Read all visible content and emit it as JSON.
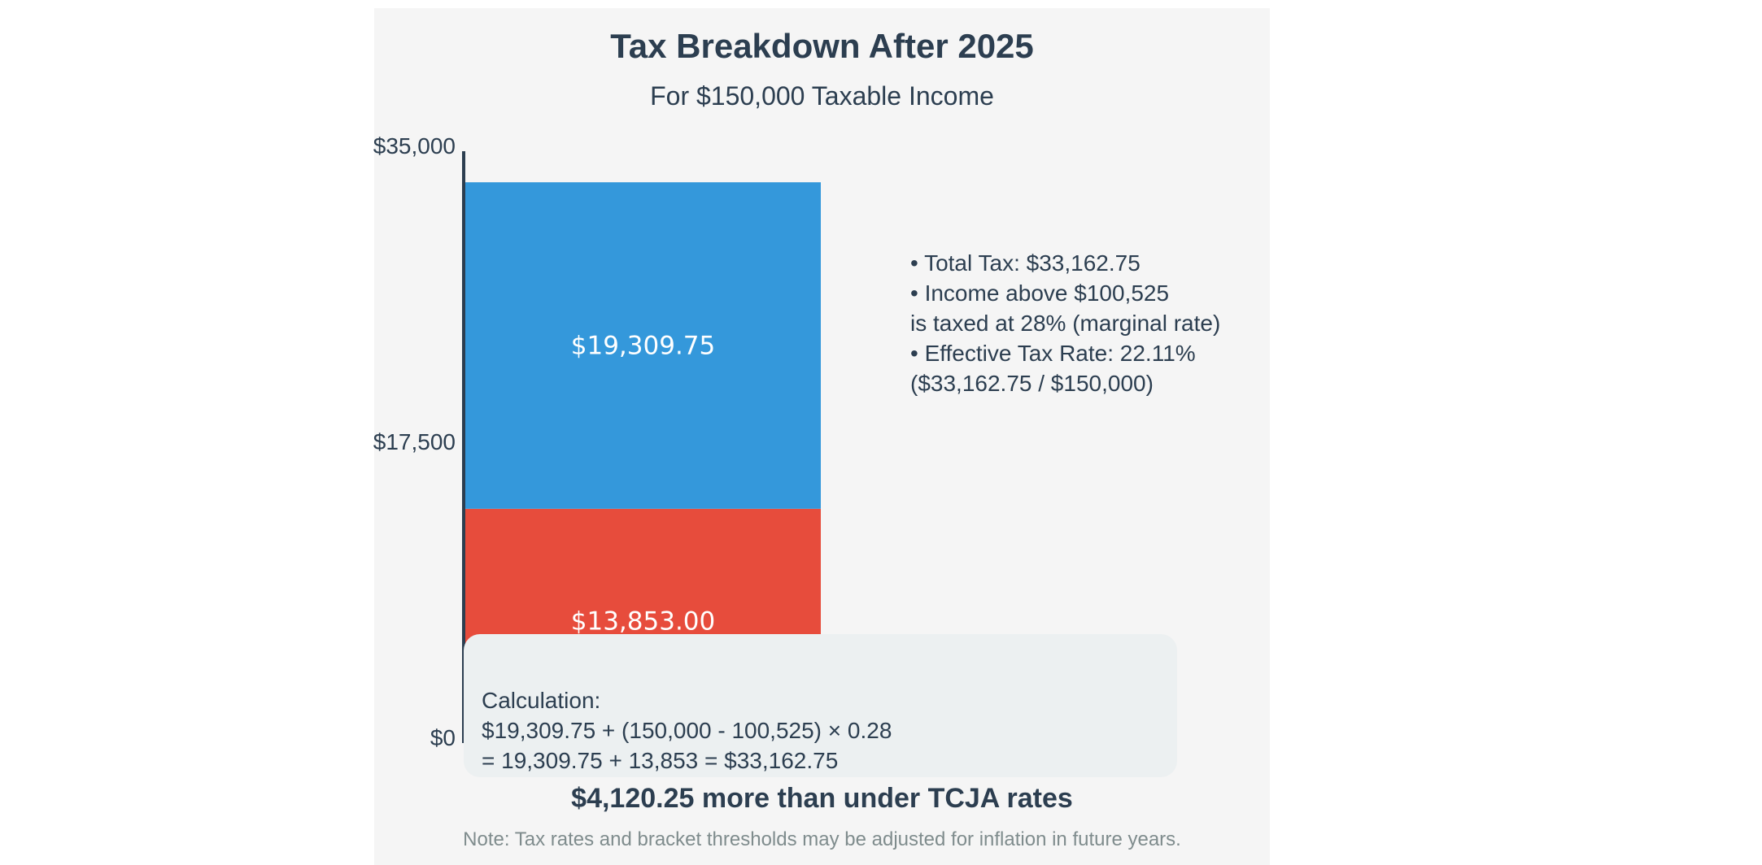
{
  "header": {
    "title": "Tax Breakdown After 2025",
    "subtitle": "For $150,000 Taxable Income"
  },
  "notes": [
    "• Total Tax: $33,162.75",
    "• Income above $100,525",
    "is taxed at 28% (marginal rate)",
    "• Effective Tax Rate: 22.11%",
    "($33,162.75 / $150,000)"
  ],
  "calculation": [
    "Calculation:",
    "$19,309.75 + (150,000 - 100,525) × 0.28",
    "= 19,309.75 + 13,853 = $33,162.75"
  ],
  "summary": "$4,120.25 more than under TCJA rates",
  "footnote": "Note: Tax rates and bracket thresholds may be adjusted for inflation in future years.",
  "colors": {
    "base_segment": "#e74c3c",
    "top_segment": "#3498db",
    "axis": "#2c3e50",
    "text": "#2c3e50"
  },
  "chart_data": {
    "type": "bar",
    "stacked": true,
    "categories": [
      ""
    ],
    "series": [
      {
        "values": [
          13853.0
        ],
        "label": "$13,853.00",
        "color": "#e74c3c"
      },
      {
        "values": [
          19309.75
        ],
        "label": "$19,309.75",
        "color": "#3498db"
      }
    ],
    "ylim": [
      0,
      35000
    ],
    "yticks": [
      {
        "value": 0,
        "label": "$0"
      },
      {
        "value": 17500,
        "label": "$17,500"
      },
      {
        "value": 35000,
        "label": "$35,000"
      }
    ],
    "title": "Tax Breakdown After 2025",
    "subtitle": "For $150,000 Taxable Income",
    "grid": false
  }
}
